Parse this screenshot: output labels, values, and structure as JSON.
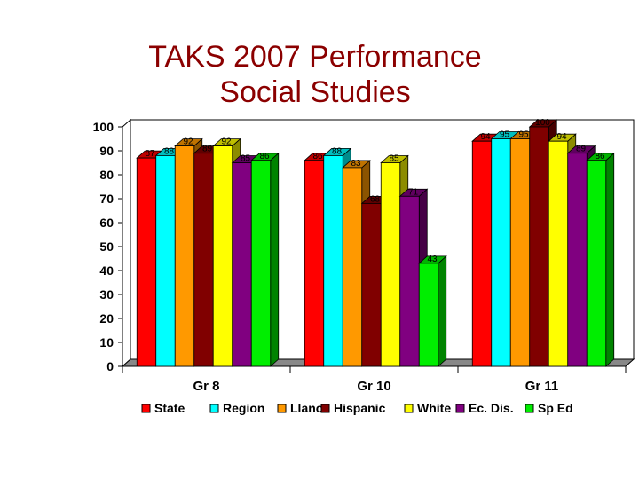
{
  "title_lines": [
    "TAKS 2007 Performance",
    "Social Studies"
  ],
  "chart_data": {
    "type": "bar",
    "title": "TAKS 2007 Performance Social Studies",
    "categories": [
      "Gr 8",
      "Gr 10",
      "Gr 11"
    ],
    "ylim": [
      0,
      100
    ],
    "yticks": [
      0,
      10,
      20,
      30,
      40,
      50,
      60,
      70,
      80,
      90,
      100
    ],
    "grid": false,
    "legend_position": "bottom",
    "series": [
      {
        "name": "State",
        "color": "#FF0000",
        "values": [
          87,
          86,
          94
        ]
      },
      {
        "name": "Region",
        "color": "#00FFFF",
        "values": [
          88,
          88,
          95
        ]
      },
      {
        "name": "Llano",
        "color": "#FF9900",
        "values": [
          92,
          83,
          95
        ]
      },
      {
        "name": "Hispanic",
        "color": "#800000",
        "values": [
          89,
          68,
          100
        ]
      },
      {
        "name": "White",
        "color": "#FFFF00",
        "values": [
          92,
          85,
          94
        ]
      },
      {
        "name": "Ec. Dis.",
        "color": "#800080",
        "values": [
          85,
          71,
          89
        ]
      },
      {
        "name": "Sp Ed",
        "color": "#00EE00",
        "values": [
          86,
          43,
          86
        ]
      }
    ]
  }
}
